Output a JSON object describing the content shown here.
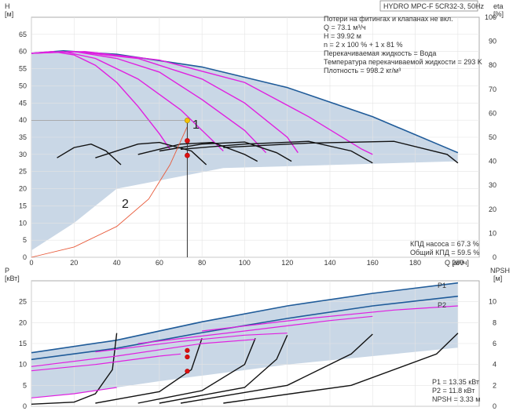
{
  "chart_data": [
    {
      "type": "line",
      "title": "HYDRO MPC-F 5CR32-3, 50Hz",
      "x_axis": {
        "label": "Q [м³/ч]",
        "ticks": [
          "0",
          "20",
          "40",
          "60",
          "80",
          "100",
          "120",
          "140",
          "160",
          "180",
          "200"
        ],
        "range": [
          0,
          210
        ]
      },
      "y_axis_left": {
        "label": "H",
        "unit": "[м]",
        "ticks": [
          "0",
          "5",
          "10",
          "15",
          "20",
          "25",
          "30",
          "35",
          "40",
          "45",
          "50",
          "55",
          "60",
          "65"
        ],
        "range": [
          0,
          70
        ]
      },
      "y_axis_right": {
        "label": "eta",
        "unit": "[%]",
        "ticks": [
          "0",
          "10",
          "20",
          "30",
          "40",
          "50",
          "60",
          "70",
          "80",
          "90",
          "100"
        ],
        "range": [
          0,
          100
        ]
      },
      "info_lines": [
        "Потери на фитингах и клапанах не вкл.",
        "Q = 73.1 м³/ч",
        "H = 39.92 м",
        "n = 2 x 100 % + 1 x 81 %",
        "Перекачиваемая жидкость = Вода",
        "Температура перекачиваемой жидкости = 293 K",
        "Плотность = 998.2 кг/м³"
      ],
      "efficiency_lines": [
        "КПД насоса = 67.3 %",
        "Общий КПД = 59.5 %"
      ],
      "markers": [
        "1",
        "2"
      ],
      "duty_point": {
        "q": 73.1,
        "h": 39.92
      },
      "operating_points_h": [
        39.92,
        34.0,
        29.7
      ],
      "series": [
        {
          "role": "max_head",
          "color": "#1f5b99",
          "points": [
            [
              0,
              59.5
            ],
            [
              15,
              60.2
            ],
            [
              40,
              59.2
            ],
            [
              80,
              55.5
            ],
            [
              120,
              49.5
            ],
            [
              160,
              41.0
            ],
            [
              200,
              30.5
            ]
          ]
        },
        {
          "role": "head_reduced",
          "color": "#e020e0",
          "points": [
            [
              0,
              59.5
            ],
            [
              10,
              60
            ],
            [
              20,
              59
            ],
            [
              30,
              56
            ],
            [
              40,
              51
            ],
            [
              50,
              44
            ],
            [
              60,
              36
            ],
            [
              65,
              31.5
            ]
          ]
        },
        {
          "role": "head_reduced",
          "color": "#e020e0",
          "points": [
            [
              0,
              59.5
            ],
            [
              15,
              60
            ],
            [
              30,
              58
            ],
            [
              50,
              52
            ],
            [
              70,
              43
            ],
            [
              90,
              31
            ]
          ]
        },
        {
          "role": "head_reduced",
          "color": "#e020e0",
          "points": [
            [
              0,
              59.5
            ],
            [
              20,
              60
            ],
            [
              40,
              58
            ],
            [
              60,
              54
            ],
            [
              80,
              46
            ],
            [
              100,
              37
            ],
            [
              110,
              30.5
            ]
          ]
        },
        {
          "role": "head_reduced",
          "color": "#e020e0",
          "points": [
            [
              0,
              59.5
            ],
            [
              20,
              60
            ],
            [
              50,
              58
            ],
            [
              80,
              52
            ],
            [
              100,
              45
            ],
            [
              120,
              35
            ],
            [
              125,
              30.5
            ]
          ]
        },
        {
          "role": "head_reduced",
          "color": "#e020e0",
          "points": [
            [
              0,
              59.5
            ],
            [
              25,
              60
            ],
            [
              60,
              57.5
            ],
            [
              100,
              51
            ],
            [
              130,
              41
            ],
            [
              155,
              31.5
            ],
            [
              160,
              30
            ]
          ]
        },
        {
          "role": "head_partial",
          "color": "#111111",
          "points": [
            [
              12,
              29
            ],
            [
              20,
              32
            ],
            [
              28,
              33
            ],
            [
              35,
              31
            ],
            [
              42,
              27
            ]
          ]
        },
        {
          "role": "head_partial",
          "color": "#111111",
          "points": [
            [
              30,
              29
            ],
            [
              50,
              33
            ],
            [
              60,
              33.5
            ],
            [
              75,
              31
            ],
            [
              82,
              27
            ]
          ]
        },
        {
          "role": "head_partial",
          "color": "#111111",
          "points": [
            [
              50,
              30
            ],
            [
              70,
              33
            ],
            [
              85,
              33.5
            ],
            [
              100,
              30
            ],
            [
              106,
              28
            ]
          ]
        },
        {
          "role": "head_partial",
          "color": "#111111",
          "points": [
            [
              60,
              31
            ],
            [
              80,
              33
            ],
            [
              100,
              33.6
            ],
            [
              115,
              30.5
            ],
            [
              122,
              28
            ]
          ]
        },
        {
          "role": "head_partial",
          "color": "#111111",
          "points": [
            [
              70,
              31.5
            ],
            [
              100,
              33
            ],
            [
              130,
              33.8
            ],
            [
              150,
              31
            ],
            [
              160,
              27.5
            ]
          ]
        },
        {
          "role": "head_partial",
          "color": "#111111",
          "points": [
            [
              90,
              32
            ],
            [
              130,
              33.3
            ],
            [
              170,
              33.8
            ],
            [
              195,
              30
            ],
            [
              200,
              27.5
            ]
          ]
        },
        {
          "role": "system_curve",
          "color": "#e85a3a",
          "points": [
            [
              0,
              0
            ],
            [
              20,
              3
            ],
            [
              40,
              9
            ],
            [
              55,
              17
            ],
            [
              65,
              27
            ],
            [
              73,
              38
            ]
          ]
        }
      ]
    },
    {
      "type": "line",
      "x_axis": {
        "label": "",
        "range": [
          0,
          210
        ]
      },
      "y_axis_left": {
        "label": "P",
        "unit": "[кВт]",
        "ticks": [
          "0",
          "5",
          "10",
          "15",
          "20",
          "25"
        ],
        "range": [
          0,
          30
        ]
      },
      "y_axis_right": {
        "label": "NPSH",
        "unit": "[м]",
        "ticks": [
          "0",
          "2",
          "4",
          "6",
          "8",
          "10"
        ],
        "range": [
          0,
          12
        ]
      },
      "legend_labels": [
        "P1",
        "P2"
      ],
      "info_lines": [
        "P1 = 13.35 кВт",
        "P2 = 11.8 кВт",
        "NPSH = 3.33 м"
      ],
      "operating_points_p": [
        13.35,
        11.8,
        8.4
      ],
      "series": [
        {
          "name": "P1",
          "color": "#1f5b99",
          "points": [
            [
              0,
              12.8
            ],
            [
              40,
              15.8
            ],
            [
              80,
              20.2
            ],
            [
              120,
              24
            ],
            [
              160,
              27
            ],
            [
              200,
              29.5
            ]
          ]
        },
        {
          "name": "P2",
          "color": "#1f5b99",
          "points": [
            [
              0,
              11.2
            ],
            [
              40,
              13.9
            ],
            [
              80,
              17.6
            ],
            [
              120,
              21
            ],
            [
              160,
              24
            ],
            [
              200,
              26.3
            ]
          ]
        },
        {
          "role": "npsh",
          "color": "#111111",
          "points": [
            [
              0,
              0.2
            ],
            [
              20,
              0.4
            ],
            [
              30,
              1.2
            ],
            [
              38,
              3.5
            ],
            [
              40,
              7
            ]
          ]
        },
        {
          "role": "npsh",
          "color": "#111111",
          "points": [
            [
              30,
              0.3
            ],
            [
              60,
              1.4
            ],
            [
              75,
              3.5
            ],
            [
              80,
              6.5
            ]
          ]
        },
        {
          "role": "npsh",
          "color": "#111111",
          "points": [
            [
              50,
              0.3
            ],
            [
              80,
              1.5
            ],
            [
              100,
              4
            ],
            [
              105,
              6.5
            ]
          ]
        },
        {
          "role": "npsh",
          "color": "#111111",
          "points": [
            [
              60,
              0.3
            ],
            [
              100,
              1.8
            ],
            [
              115,
              4.5
            ],
            [
              120,
              6.8
            ]
          ]
        },
        {
          "role": "npsh",
          "color": "#111111",
          "points": [
            [
              70,
              0.3
            ],
            [
              120,
              2.0
            ],
            [
              150,
              5
            ],
            [
              160,
              6.9
            ]
          ]
        },
        {
          "role": "npsh",
          "color": "#111111",
          "points": [
            [
              90,
              0.3
            ],
            [
              150,
              2.0
            ],
            [
              190,
              5
            ],
            [
              200,
              7
            ]
          ]
        },
        {
          "role": "power_reduced",
          "color": "#e020e0",
          "points": [
            [
              0,
              2.0
            ],
            [
              20,
              3.0
            ],
            [
              40,
              4.5
            ]
          ]
        },
        {
          "role": "power_reduced",
          "color": "#e020e0",
          "points": [
            [
              0,
              8.5
            ],
            [
              30,
              10
            ],
            [
              60,
              12
            ],
            [
              70,
              12.5
            ]
          ]
        },
        {
          "role": "power_reduced",
          "color": "#e020e0",
          "points": [
            [
              0,
              9.5
            ],
            [
              40,
              12
            ],
            [
              80,
              15
            ],
            [
              105,
              16
            ]
          ]
        },
        {
          "role": "power_reduced",
          "color": "#e020e0",
          "points": [
            [
              30,
              13
            ],
            [
              70,
              15.5
            ],
            [
              100,
              17
            ],
            [
              120,
              17.5
            ]
          ]
        },
        {
          "role": "power_reduced",
          "color": "#e020e0",
          "points": [
            [
              50,
              15
            ],
            [
              100,
              18
            ],
            [
              140,
              20.5
            ],
            [
              160,
              21.5
            ]
          ]
        },
        {
          "role": "power_reduced",
          "color": "#e020e0",
          "points": [
            [
              80,
              18
            ],
            [
              130,
              21
            ],
            [
              170,
              23
            ],
            [
              200,
              24
            ]
          ]
        }
      ]
    }
  ]
}
